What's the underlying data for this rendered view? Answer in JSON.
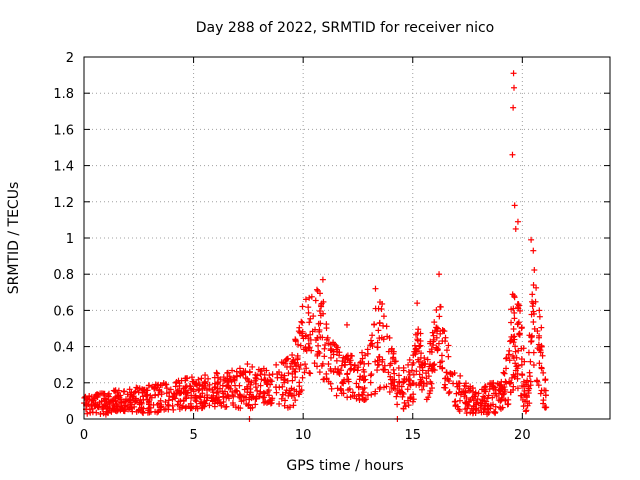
{
  "chart_data": {
    "type": "scatter",
    "title": "Day 288 of 2022, SRMTID for receiver nico",
    "xlabel": "GPS time / hours",
    "ylabel": "SRMTID / TECUs",
    "xlim": [
      0,
      24
    ],
    "ylim": [
      0,
      2
    ],
    "xticks": [
      0,
      5,
      10,
      15,
      20
    ],
    "xtick_labels": [
      "0",
      "5",
      "10",
      "15",
      "20"
    ],
    "yticks": [
      0,
      0.2,
      0.4,
      0.6,
      0.8,
      1,
      1.2,
      1.4,
      1.6,
      1.8,
      2
    ],
    "ytick_labels": [
      "0",
      "0.2",
      "0.4",
      "0.6",
      "0.8",
      "1",
      "1.2",
      "1.4",
      "1.6",
      "1.8",
      "2"
    ],
    "grid": true,
    "marker": "+",
    "color": "#ff0000",
    "envelope": {
      "description": "approximate upper envelope of the dense point cloud, in data units",
      "x": [
        0,
        0.5,
        1,
        1.5,
        2,
        2.5,
        3,
        3.5,
        4,
        4.5,
        5,
        5.5,
        6,
        6.5,
        7,
        7.5,
        8,
        8.5,
        9,
        9.5,
        10,
        10.3,
        10.6,
        10.9,
        11.2,
        11.5,
        12,
        12.5,
        13,
        13.3,
        13.6,
        13.9,
        14.2,
        14.5,
        15,
        15.3,
        15.6,
        15.9,
        16.2,
        16.5,
        17,
        17.5,
        18,
        18.5,
        19,
        19.3,
        19.6,
        19.9,
        20.2,
        20.5,
        20.8,
        21.1
      ],
      "base": [
        0.07,
        0.08,
        0.08,
        0.09,
        0.09,
        0.1,
        0.1,
        0.11,
        0.12,
        0.13,
        0.14,
        0.14,
        0.15,
        0.15,
        0.16,
        0.17,
        0.17,
        0.17,
        0.18,
        0.2,
        0.38,
        0.45,
        0.48,
        0.42,
        0.32,
        0.25,
        0.22,
        0.22,
        0.24,
        0.35,
        0.4,
        0.3,
        0.2,
        0.15,
        0.22,
        0.36,
        0.2,
        0.3,
        0.5,
        0.28,
        0.15,
        0.1,
        0.09,
        0.1,
        0.12,
        0.2,
        0.45,
        0.35,
        0.1,
        0.5,
        0.35,
        0.08
      ],
      "spread": [
        0.06,
        0.07,
        0.08,
        0.08,
        0.09,
        0.09,
        0.1,
        0.1,
        0.1,
        0.11,
        0.12,
        0.12,
        0.12,
        0.12,
        0.14,
        0.16,
        0.14,
        0.14,
        0.16,
        0.2,
        0.3,
        0.28,
        0.28,
        0.3,
        0.2,
        0.18,
        0.16,
        0.16,
        0.2,
        0.3,
        0.3,
        0.22,
        0.16,
        0.14,
        0.18,
        0.24,
        0.16,
        0.2,
        0.28,
        0.2,
        0.14,
        0.1,
        0.08,
        0.12,
        0.1,
        0.2,
        0.4,
        0.3,
        0.12,
        0.45,
        0.3,
        0.08
      ]
    },
    "notable_points": [
      {
        "x": 19.6,
        "y": 1.91
      },
      {
        "x": 19.62,
        "y": 1.83
      },
      {
        "x": 19.58,
        "y": 1.72
      },
      {
        "x": 19.55,
        "y": 1.46
      },
      {
        "x": 19.65,
        "y": 1.18
      },
      {
        "x": 19.8,
        "y": 1.09
      },
      {
        "x": 19.7,
        "y": 1.05
      },
      {
        "x": 20.4,
        "y": 0.99
      },
      {
        "x": 20.5,
        "y": 0.93
      },
      {
        "x": 16.2,
        "y": 0.8
      },
      {
        "x": 10.9,
        "y": 0.77
      },
      {
        "x": 13.3,
        "y": 0.72
      },
      {
        "x": 15.2,
        "y": 0.64
      },
      {
        "x": 12.0,
        "y": 0.52
      },
      {
        "x": 7.55,
        "y": 0.0
      },
      {
        "x": 14.3,
        "y": 0.0
      }
    ]
  }
}
